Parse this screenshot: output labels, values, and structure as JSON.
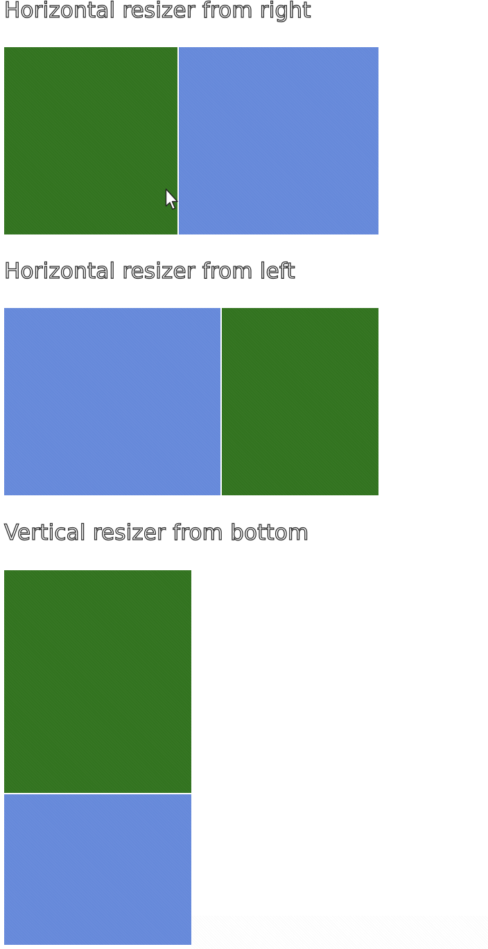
{
  "sections": [
    {
      "heading": "Horizontal resizer from right",
      "orientation": "horizontal",
      "panes": [
        "green",
        "blue"
      ]
    },
    {
      "heading": "Horizontal resizer from left",
      "orientation": "horizontal",
      "panes": [
        "blue",
        "green"
      ]
    },
    {
      "heading": "Vertical resizer from bottom",
      "orientation": "vertical",
      "panes": [
        "green",
        "blue"
      ]
    }
  ],
  "colors": {
    "green_pane": "#32731f",
    "blue_pane": "#6689da",
    "resizer": "#ffffff",
    "background": "#ffffff"
  },
  "cursor": {
    "icon": "arrow-pointer-icon"
  }
}
